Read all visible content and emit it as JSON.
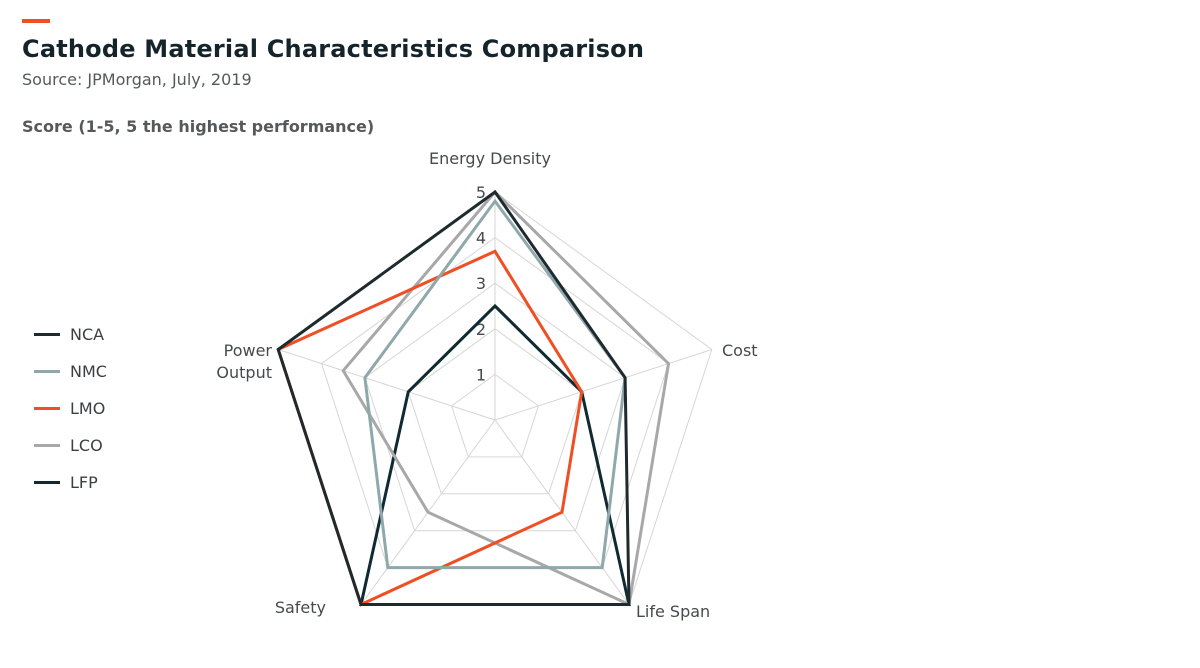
{
  "header": {
    "title": "Cathode Material Characteristics Comparison",
    "subtitle": "Source: JPMorgan, July, 2019",
    "accent_color": "#f04e23"
  },
  "chart_data": {
    "type": "radar",
    "title": "Cathode Material Characteristics Comparison",
    "ylabel": "Score (1-5, 5 the highest performance)",
    "axes": [
      "Energy Density",
      "Cost",
      "Life Span",
      "Safety",
      "Power Output"
    ],
    "axis_display": [
      [
        "Energy Density"
      ],
      [
        "Cost"
      ],
      [
        "Life Span"
      ],
      [
        "Safety"
      ],
      [
        "Power",
        "Output"
      ]
    ],
    "ticks": [
      1,
      2,
      3,
      4,
      5
    ],
    "range": [
      0,
      5
    ],
    "grid": true,
    "legend_position": "left",
    "series": [
      {
        "name": "NCA",
        "color": "#1e2a2e",
        "values": [
          5,
          3,
          5,
          5,
          5
        ]
      },
      {
        "name": "NMC",
        "color": "#8fa8ab",
        "values": [
          4.8,
          3,
          4,
          4,
          3
        ]
      },
      {
        "name": "LMO",
        "color": "#f04e23",
        "values": [
          3.7,
          2,
          2.5,
          5,
          5
        ]
      },
      {
        "name": "LCO",
        "color": "#a8a8a8",
        "values": [
          5,
          4,
          5,
          2.5,
          3.5
        ]
      },
      {
        "name": "LFP",
        "color": "#0f2a33",
        "values": [
          2.5,
          2,
          5,
          5,
          2
        ]
      }
    ]
  }
}
